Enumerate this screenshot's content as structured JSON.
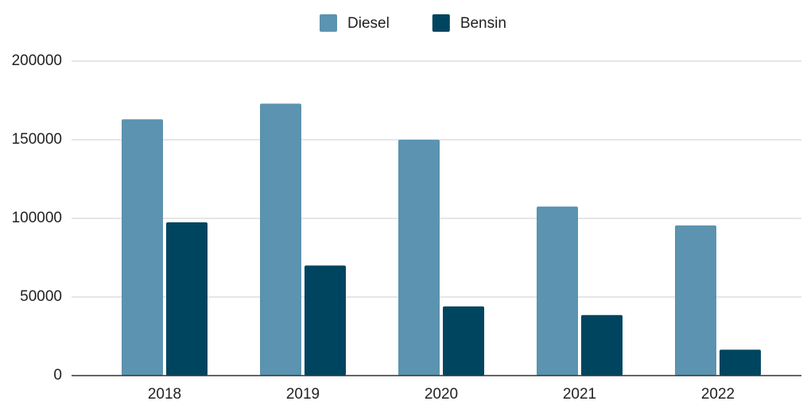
{
  "chart_data": {
    "type": "bar",
    "categories": [
      "2018",
      "2019",
      "2020",
      "2021",
      "2022"
    ],
    "series": [
      {
        "name": "Diesel",
        "color": "#5b93b0",
        "values": [
          163000,
          173000,
          150000,
          107500,
          95500
        ]
      },
      {
        "name": "Bensin",
        "color": "#00455f",
        "values": [
          97500,
          70000,
          44000,
          38500,
          16500
        ]
      }
    ],
    "ylim": [
      0,
      200000
    ],
    "yticks": [
      0,
      50000,
      100000,
      150000,
      200000
    ],
    "grid": true,
    "legend": "top"
  }
}
